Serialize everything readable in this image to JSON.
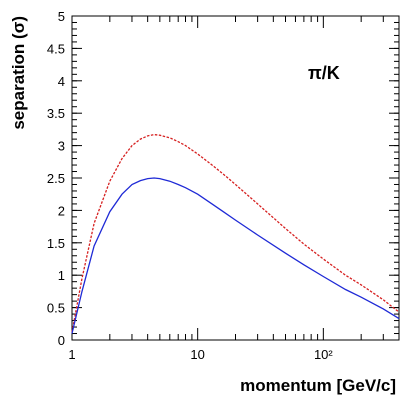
{
  "chart_data": {
    "type": "line",
    "annotation": "π/K",
    "xlabel": "momentum [GeV/c]",
    "ylabel": "separation (σ)",
    "x_scale": "log",
    "xlim": [
      1,
      400
    ],
    "ylim": [
      0,
      5
    ],
    "x_tick_labels": [
      "1",
      "10",
      "10²"
    ],
    "x_major_ticks": [
      1,
      10,
      100
    ],
    "y_ticks": [
      0,
      0.5,
      1,
      1.5,
      2,
      2.5,
      3,
      3.5,
      4,
      4.5,
      5
    ],
    "y_tick_labels": [
      "0",
      "0.5",
      "1",
      "1.5",
      "2",
      "2.5",
      "3",
      "3.5",
      "4",
      "4.5",
      "5"
    ],
    "grid": false,
    "series": [
      {
        "color": "#d62020",
        "dash": "dashed",
        "x": [
          1,
          1.2,
          1.5,
          2,
          2.5,
          3,
          3.5,
          4,
          4.5,
          5,
          6,
          7,
          8,
          10,
          13,
          16,
          20,
          30,
          50,
          70,
          100,
          150,
          200,
          300,
          400
        ],
        "y": [
          0.12,
          0.95,
          1.8,
          2.45,
          2.8,
          3.0,
          3.1,
          3.15,
          3.17,
          3.16,
          3.12,
          3.06,
          3.0,
          2.87,
          2.7,
          2.56,
          2.4,
          2.1,
          1.72,
          1.48,
          1.25,
          1.0,
          0.85,
          0.62,
          0.43
        ]
      },
      {
        "color": "#1f2ad6",
        "dash": "solid",
        "x": [
          1,
          1.2,
          1.5,
          2,
          2.5,
          3,
          3.5,
          4,
          4.5,
          5,
          6,
          7,
          8,
          10,
          13,
          16,
          20,
          30,
          50,
          70,
          100,
          150,
          200,
          300,
          400
        ],
        "y": [
          0.1,
          0.75,
          1.45,
          1.98,
          2.25,
          2.4,
          2.46,
          2.49,
          2.5,
          2.49,
          2.45,
          2.4,
          2.35,
          2.25,
          2.1,
          1.98,
          1.85,
          1.62,
          1.34,
          1.16,
          0.98,
          0.78,
          0.66,
          0.48,
          0.33
        ]
      }
    ]
  }
}
